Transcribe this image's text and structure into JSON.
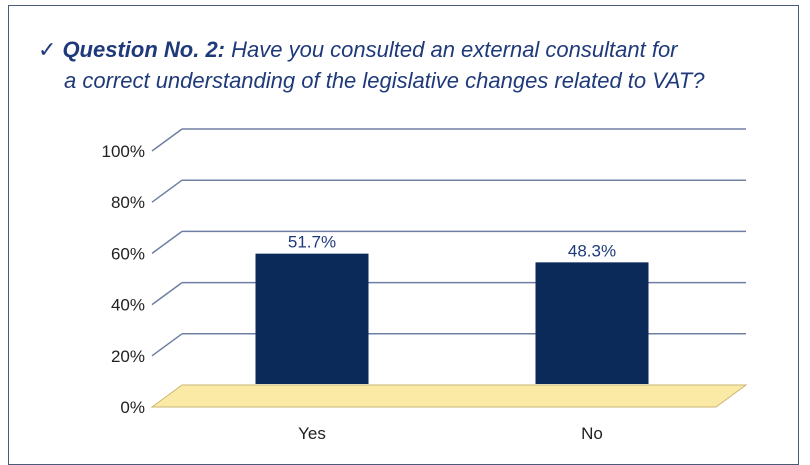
{
  "question": {
    "check_icon": "check-icon",
    "label": "Question No. 2:",
    "text_line1": "Have you consulted an external consultant for",
    "text_line2": "a correct understanding of the legislative changes related to VAT?"
  },
  "colors": {
    "bar": "#0b2a5a",
    "floor": "#fbe9a6",
    "grid": "#6f7fa3",
    "text": "#1f3a7a",
    "axis_text": "#222222"
  },
  "chart_data": {
    "type": "bar",
    "categories": [
      "Yes",
      "No"
    ],
    "values": [
      51.7,
      48.3
    ],
    "data_labels": [
      "51.7%",
      "48.3%"
    ],
    "yticks": [
      "0%",
      "20%",
      "40%",
      "60%",
      "80%",
      "100%"
    ],
    "ylim": [
      0,
      100
    ],
    "grid": true,
    "legend": "none",
    "style": "3d-perspective"
  }
}
